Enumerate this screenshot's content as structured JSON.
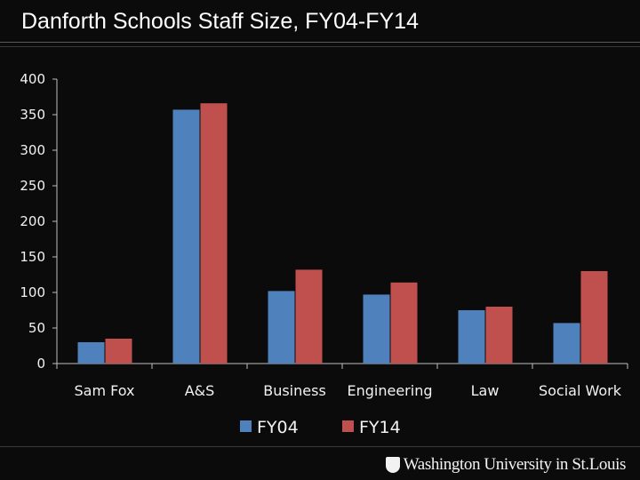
{
  "slide": {
    "title": "Danforth Schools Staff Size, FY04-FY14",
    "logo_text": "Washington University in St.Louis"
  },
  "colors": {
    "background": "#0b0b0b",
    "text": "#f2f2f2",
    "axis": "#bfbfbf"
  },
  "chart_data": {
    "type": "bar",
    "title": "",
    "xlabel": "",
    "ylabel": "",
    "categories": [
      "Sam Fox",
      "A&S",
      "Business",
      "Engineering",
      "Law",
      "Social Work"
    ],
    "series": [
      {
        "name": "FY04",
        "color": "#4f81bd",
        "values": [
          30,
          357,
          102,
          97,
          75,
          57
        ]
      },
      {
        "name": "FY14",
        "color": "#c0504d",
        "values": [
          35,
          366,
          132,
          114,
          80,
          130
        ]
      }
    ],
    "ylim": [
      0,
      400
    ],
    "yticks": [
      0,
      50,
      100,
      150,
      200,
      250,
      300,
      350,
      400
    ],
    "grid": false,
    "legend_position": "bottom"
  }
}
